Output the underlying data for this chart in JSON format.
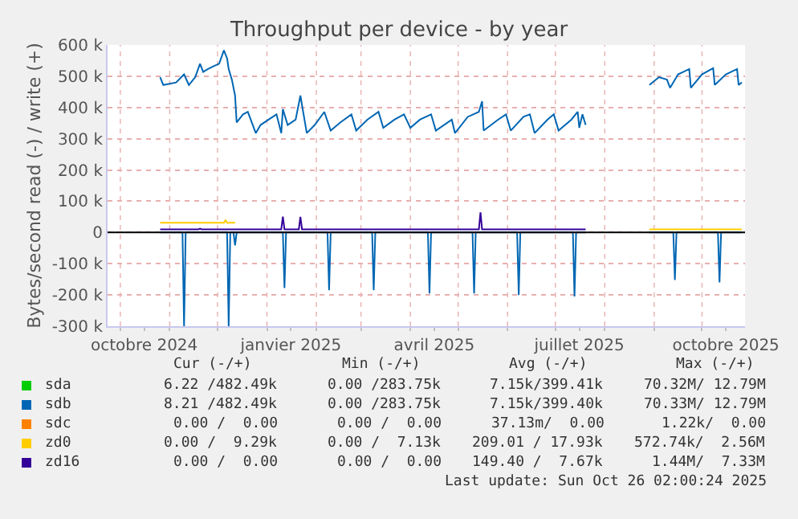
{
  "chart_data": {
    "type": "line",
    "title": "Throughput per device - by year",
    "ylabel": "Bytes/second read (-) / write (+)",
    "xlim": [
      "2024-09-23",
      "2025-10-28"
    ],
    "ylim": [
      -300000,
      600000
    ],
    "xticks": [
      {
        "value": "2024-10-01",
        "label": null
      },
      {
        "value": "2024-10-16",
        "label": "octobre 2024"
      },
      {
        "value": "2024-11-01",
        "label": null
      },
      {
        "value": "2024-12-01",
        "label": null
      },
      {
        "value": "2025-01-01",
        "label": null
      },
      {
        "value": "2025-01-16",
        "label": "janvier 2025"
      },
      {
        "value": "2025-02-01",
        "label": null
      },
      {
        "value": "2025-03-01",
        "label": null
      },
      {
        "value": "2025-04-01",
        "label": null
      },
      {
        "value": "2025-04-16",
        "label": "avril 2025"
      },
      {
        "value": "2025-05-01",
        "label": null
      },
      {
        "value": "2025-06-01",
        "label": null
      },
      {
        "value": "2025-07-01",
        "label": null
      },
      {
        "value": "2025-07-16",
        "label": "juillet 2025"
      },
      {
        "value": "2025-08-01",
        "label": null
      },
      {
        "value": "2025-09-01",
        "label": null
      },
      {
        "value": "2025-10-01",
        "label": null
      },
      {
        "value": "2025-10-16",
        "label": "octobre 2025"
      }
    ],
    "yticks": [
      {
        "value": -300000,
        "label": "-300 k"
      },
      {
        "value": -200000,
        "label": "-200 k"
      },
      {
        "value": -100000,
        "label": "-100 k"
      },
      0,
      {
        "value": 100000,
        "label": "100 k"
      },
      {
        "value": 200000,
        "label": "200 k"
      },
      {
        "value": 300000,
        "label": "300 k"
      },
      {
        "value": 400000,
        "label": "400 k"
      },
      {
        "value": 500000,
        "label": "500 k"
      },
      {
        "value": 600000,
        "label": "600 k"
      }
    ],
    "grid": true,
    "legend": "bottom",
    "marker": "none",
    "line_style": "solid",
    "ref_lines": [
      {
        "axis": "y",
        "value": 0,
        "color": "#000000"
      }
    ],
    "series": [
      {
        "name": "sda",
        "color": "#00cc00"
      },
      {
        "name": "sdb",
        "color": "#0066b3",
        "x": [
          "2024-10-26",
          "2024-10-28",
          "2024-11-05",
          "2024-11-10",
          "2024-11-13",
          "2024-11-17",
          "2024-11-20",
          "2024-11-22",
          "2024-11-25",
          "2024-11-28",
          "2024-12-02",
          "2024-12-05",
          "2024-12-07",
          "2024-12-08",
          "2024-12-10",
          "2024-12-12",
          "2024-12-13",
          "2024-12-17",
          "2024-12-20",
          "2024-12-25",
          "2024-12-28",
          "2025-01-02",
          "2025-01-07",
          "2025-01-10",
          "2025-01-11",
          "2025-01-14",
          "2025-01-19",
          "2025-01-22",
          "2025-01-26",
          "2025-01-31",
          "2025-02-06",
          "2025-02-10",
          "2025-02-16",
          "2025-02-23",
          "2025-02-26",
          "2025-03-05",
          "2025-03-12",
          "2025-03-15",
          "2025-03-22",
          "2025-03-28",
          "2025-04-01",
          "2025-04-07",
          "2025-04-14",
          "2025-04-17",
          "2025-04-27",
          "2025-04-29",
          "2025-05-07",
          "2025-05-14",
          "2025-05-16",
          "2025-05-17",
          "2025-05-26",
          "2025-05-31",
          "2025-06-03",
          "2025-06-11",
          "2025-06-15",
          "2025-06-18",
          "2025-06-26",
          "2025-06-30",
          "2025-07-03",
          "2025-07-11",
          "2025-07-15",
          "2025-07-16",
          "2025-07-18",
          "2025-07-20",
          "2025-08-09",
          "2025-08-29",
          "2025-09-04",
          "2025-09-09",
          "2025-09-11",
          "2025-09-16",
          "2025-09-23",
          "2025-09-24",
          "2025-10-01",
          "2025-10-08",
          "2025-10-09",
          "2025-10-16",
          "2025-10-23",
          "2025-10-24",
          "2025-10-26"
        ],
        "values": [
          497000,
          472000,
          480000,
          506000,
          472000,
          497000,
          540000,
          514000,
          523000,
          531000,
          540000,
          583000,
          557000,
          523000,
          489000,
          438000,
          352000,
          378000,
          386000,
          318000,
          344000,
          361000,
          378000,
          318000,
          395000,
          344000,
          361000,
          438000,
          318000,
          344000,
          386000,
          326000,
          352000,
          378000,
          326000,
          361000,
          386000,
          335000,
          361000,
          378000,
          335000,
          361000,
          378000,
          326000,
          361000,
          318000,
          370000,
          386000,
          420000,
          326000,
          361000,
          378000,
          326000,
          370000,
          378000,
          318000,
          361000,
          378000,
          326000,
          361000,
          386000,
          335000,
          378000,
          344000,
          null,
          472000,
          497000,
          489000,
          463000,
          506000,
          523000,
          463000,
          506000,
          526000,
          472000,
          506000,
          523000,
          472000,
          480000
        ]
      },
      {
        "color": "#0066b3",
        "x": [
          "2024-10-26",
          "2024-11-09",
          "2024-11-10",
          "2024-11-11",
          "2024-12-07",
          "2024-12-08",
          "2024-12-09",
          "2024-12-11",
          "2024-12-12",
          "2024-12-13",
          "2025-01-11",
          "2025-01-12",
          "2025-01-13",
          "2025-02-08",
          "2025-02-09",
          "2025-02-10",
          "2025-03-08",
          "2025-03-09",
          "2025-03-10",
          "2025-04-12",
          "2025-04-13",
          "2025-04-14",
          "2025-05-10",
          "2025-05-11",
          "2025-05-12",
          "2025-06-07",
          "2025-06-08",
          "2025-06-09",
          "2025-07-12",
          "2025-07-13",
          "2025-07-14",
          "2025-07-20",
          "2025-08-09",
          "2025-08-29",
          "2025-09-13",
          "2025-09-14",
          "2025-09-15",
          "2025-10-11",
          "2025-10-12",
          "2025-10-13",
          "2025-10-26"
        ],
        "values": [
          0,
          0,
          -300000,
          0,
          0,
          -300000,
          0,
          0,
          -41000,
          0,
          0,
          -178000,
          0,
          0,
          -185000,
          0,
          0,
          -185000,
          0,
          0,
          -195000,
          0,
          0,
          -195000,
          0,
          0,
          -200000,
          0,
          0,
          -205000,
          0,
          0,
          null,
          0,
          0,
          -152000,
          0,
          0,
          -160000,
          0,
          0
        ]
      },
      {
        "name": "sdc",
        "color": "#ff8000"
      },
      {
        "name": "zd0",
        "color": "#ffcc00",
        "x": [
          "2024-10-26",
          "2024-12-05",
          "2024-12-06",
          "2024-12-07",
          "2024-12-12",
          "2025-08-09",
          "2025-08-29",
          "2025-10-26"
        ],
        "values": [
          31000,
          31000,
          40000,
          31000,
          31000,
          null,
          10000,
          10000
        ]
      },
      {
        "name": "zd16",
        "color": "#330099",
        "x": [
          "2024-10-26",
          "2024-11-19",
          "2024-11-20",
          "2024-11-21",
          "2025-01-10",
          "2025-01-11",
          "2025-01-12",
          "2025-01-21",
          "2025-01-22",
          "2025-01-23",
          "2025-05-14",
          "2025-05-15",
          "2025-05-16",
          "2025-07-20"
        ],
        "values": [
          10000,
          10000,
          12000,
          10000,
          10000,
          51000,
          10000,
          10000,
          50000,
          10000,
          10000,
          64000,
          10000,
          10000
        ]
      }
    ],
    "annotations": [
      "Cur (-/+)",
      "Min (-/+)",
      "Avg (-/+)",
      "Max (-/+)",
      "6.22 /482.49k",
      "0.00 /283.75k",
      "7.15k/399.41k",
      "70.32M/ 12.79M",
      "8.21 /482.49k",
      "0.00 /283.75k",
      "7.15k/399.40k",
      "70.33M/ 12.79M",
      "0.00 /  0.00",
      "0.00 /  0.00",
      "37.13m/  0.00",
      "1.22k/  0.00",
      "0.00 /  9.29k",
      "0.00 /  7.13k",
      "209.01 / 17.93k",
      "572.74k/  2.56M",
      "0.00 /  0.00",
      "0.00 /  0.00",
      "149.40 /  7.67k",
      "1.44M/  7.33M",
      "Last update: Sun Oct 26 02:00:24 2025"
    ]
  }
}
